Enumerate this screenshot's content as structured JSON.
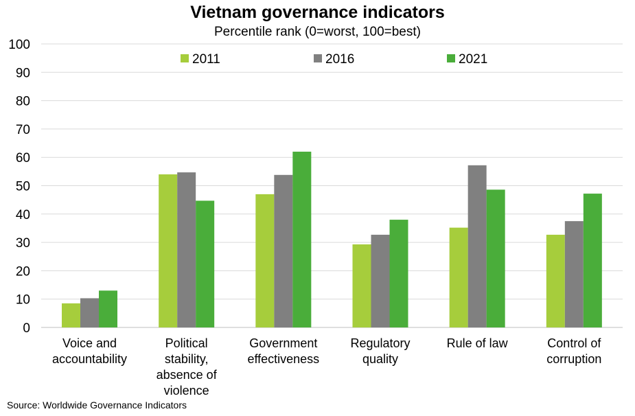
{
  "chart_data": {
    "type": "bar",
    "title": "Vietnam governance indicators",
    "subtitle": "Percentile rank (0=worst, 100=best)",
    "categories": [
      [
        "Voice and",
        "accountability"
      ],
      [
        "Political",
        "stability,",
        "absence of",
        "violence"
      ],
      [
        "Government",
        "effectiveness"
      ],
      [
        "Regulatory",
        "quality"
      ],
      [
        "Rule of law"
      ],
      [
        "Control of",
        "corruption"
      ]
    ],
    "series": [
      {
        "name": "2011",
        "color": "#a6cd3c",
        "values": [
          8.5,
          54.0,
          47.0,
          29.3,
          35.2,
          32.7
        ]
      },
      {
        "name": "2016",
        "color": "#808080",
        "values": [
          10.3,
          54.7,
          53.8,
          32.7,
          57.2,
          37.5
        ]
      },
      {
        "name": "2021",
        "color": "#4aad3a",
        "values": [
          13.0,
          44.7,
          62.0,
          38.0,
          48.6,
          47.2
        ]
      }
    ],
    "ylim": [
      0,
      100
    ],
    "yticks": [
      0,
      10,
      20,
      30,
      40,
      50,
      60,
      70,
      80,
      90,
      100
    ],
    "grid": true,
    "legend": "top-center",
    "source": "Source: Worldwide Governance  Indicators"
  }
}
